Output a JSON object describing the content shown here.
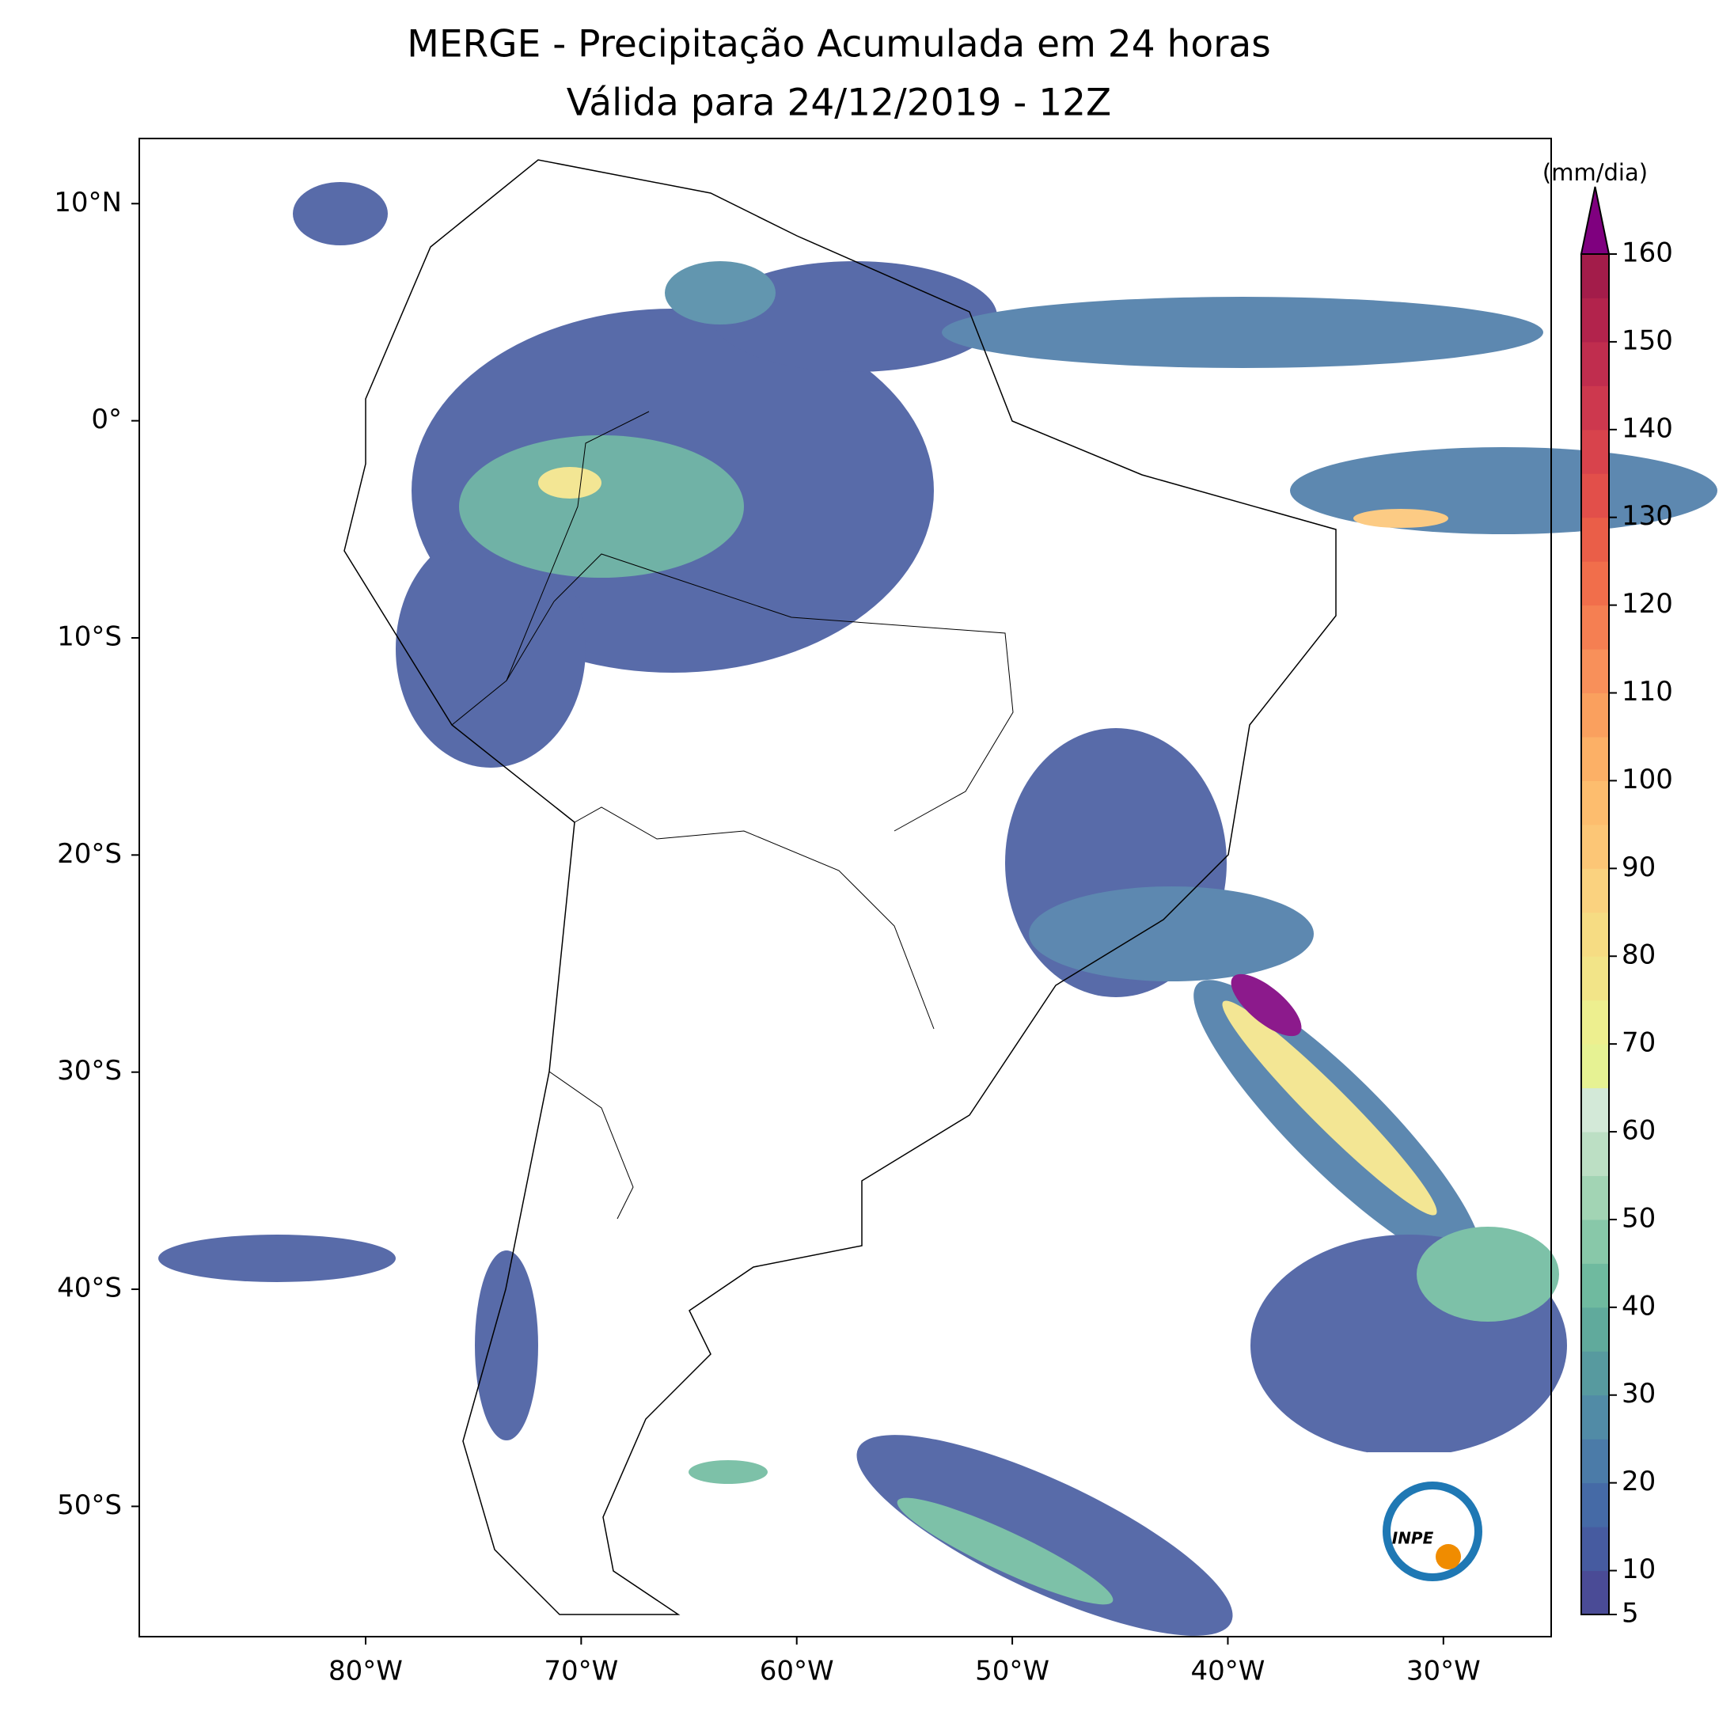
{
  "chart_data": {
    "type": "map",
    "title": "MERGE - Precipitação Acumulada em 24 horas",
    "subtitle": "Válida para 24/12/2019 - 12Z",
    "xlim": [
      -90.5,
      -25
    ],
    "ylim": [
      -56,
      13
    ],
    "xticks": [
      {
        "value": -80,
        "label": "80°W"
      },
      {
        "value": -70,
        "label": "70°W"
      },
      {
        "value": -60,
        "label": "60°W"
      },
      {
        "value": -50,
        "label": "50°W"
      },
      {
        "value": -40,
        "label": "40°W"
      },
      {
        "value": -30,
        "label": "30°W"
      }
    ],
    "yticks": [
      {
        "value": 10,
        "label": "10°N"
      },
      {
        "value": 0,
        "label": "0°"
      },
      {
        "value": -10,
        "label": "10°S"
      },
      {
        "value": -20,
        "label": "20°S"
      },
      {
        "value": -30,
        "label": "30°S"
      },
      {
        "value": -40,
        "label": "40°S"
      },
      {
        "value": -50,
        "label": "50°S"
      }
    ],
    "colorbar": {
      "label": "(mm/dia)",
      "lim": [
        5,
        160
      ],
      "step": 5,
      "ticks": [
        5,
        10,
        20,
        30,
        40,
        50,
        60,
        70,
        80,
        90,
        100,
        110,
        120,
        130,
        140,
        150,
        160
      ],
      "colors": [
        "#4a4b96",
        "#465ba0",
        "#456aa6",
        "#4b7ba8",
        "#518ba6",
        "#579a9f",
        "#60aa9c",
        "#6fba9f",
        "#88c8a9",
        "#a2d4b4",
        "#bcdfc4",
        "#d3e9d8",
        "#e6f293",
        "#edef8f",
        "#f2e488",
        "#f6dc83",
        "#fad27f",
        "#fcc676",
        "#fdbd6e",
        "#fcb066",
        "#faa05e",
        "#f8905a",
        "#f57f52",
        "#f16e4b",
        "#ea5e48",
        "#e24f4a",
        "#d8434c",
        "#cd384e",
        "#c02d4e",
        "#b2234c",
        "#a31c4a"
      ],
      "extend_color": "#7f007f"
    },
    "logo": "INPE"
  }
}
